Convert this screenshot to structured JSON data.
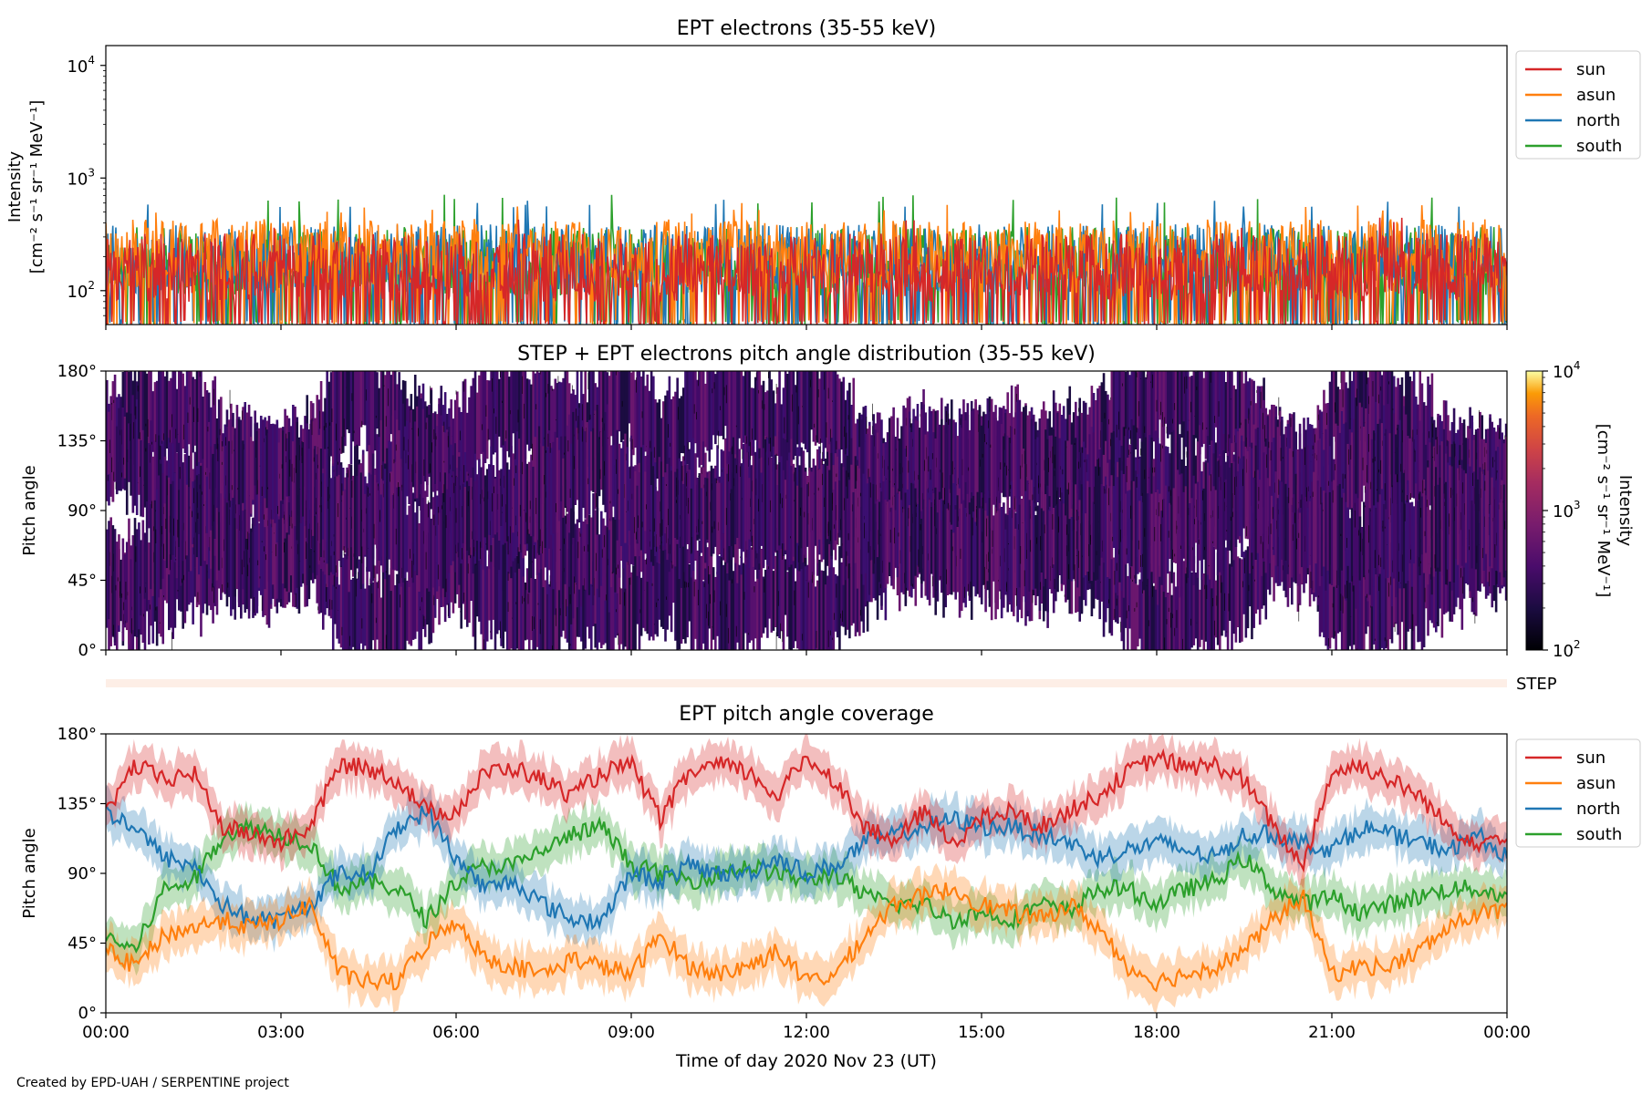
{
  "credit": "Created by EPD-UAH / SERPENTINE project",
  "xaxis": {
    "label": "Time of day 2020 Nov 23 (UT)",
    "tick_labels": [
      "00:00",
      "03:00",
      "06:00",
      "09:00",
      "12:00",
      "15:00",
      "18:00",
      "21:00",
      "00:00"
    ]
  },
  "colors": {
    "sun": "#d62728",
    "asun": "#ff7f0e",
    "north": "#1f77b4",
    "south": "#2ca02c",
    "step_bar": "#fdeee6"
  },
  "legend_labels": [
    "sun",
    "asun",
    "north",
    "south"
  ],
  "step_label": "STEP",
  "chart_data": [
    {
      "type": "line",
      "title": "EPT electrons (35-55 keV)",
      "ylabel_line1": "Intensity",
      "ylabel_line2": "[cm⁻² s⁻¹ sr⁻¹ MeV⁻¹]",
      "yscale": "log",
      "ylim": [
        50,
        15000
      ],
      "ytick_values": [
        100,
        1000,
        10000
      ],
      "ytick_exponents": [
        "2",
        "3",
        "4"
      ],
      "xlim_hours": [
        0,
        24
      ],
      "legend_position": "upper right, outside",
      "series_names": [
        "sun",
        "asun",
        "north",
        "south"
      ],
      "series_summary": {
        "sun": {
          "typical": 150,
          "min": 50,
          "max": 450
        },
        "asun": {
          "typical": 200,
          "min": 50,
          "max": 600
        },
        "north": {
          "typical": 180,
          "min": 50,
          "max": 650
        },
        "south": {
          "typical": 170,
          "min": 50,
          "max": 720
        }
      }
    },
    {
      "type": "heatmap",
      "title": "STEP + EPT electrons pitch angle distribution (35-55 keV)",
      "ylabel": "Pitch angle",
      "ylim": [
        0,
        180
      ],
      "ytick_labels": [
        "0°",
        "45°",
        "90°",
        "135°",
        "180°"
      ],
      "colorbar": {
        "label": "Intensity",
        "units": "[cm⁻² s⁻¹ sr⁻¹ MeV⁻¹]",
        "scale": "log",
        "range": [
          100,
          10000
        ],
        "tick_exponents": [
          "2",
          "3",
          "4"
        ],
        "colormap": "inferno"
      }
    },
    {
      "type": "line",
      "title": "EPT pitch angle coverage",
      "ylabel": "Pitch angle",
      "ylim": [
        0,
        180
      ],
      "ytick_labels": [
        "0°",
        "45°",
        "90°",
        "135°",
        "180°"
      ],
      "legend_position": "upper right, outside",
      "x_hours": [
        0,
        0.5,
        1,
        1.5,
        2,
        2.5,
        3,
        3.5,
        4,
        4.5,
        5,
        5.5,
        6,
        6.5,
        7,
        7.5,
        8,
        8.5,
        9,
        9.5,
        10,
        10.5,
        11,
        11.5,
        12,
        12.5,
        13,
        13.5,
        14,
        14.5,
        15,
        15.5,
        16,
        16.5,
        17,
        17.5,
        18,
        18.5,
        19,
        19.5,
        20,
        20.5,
        21,
        21.5,
        22,
        22.5,
        23,
        23.5,
        24
      ],
      "series": [
        {
          "name": "sun",
          "values": [
            130,
            160,
            150,
            155,
            120,
            115,
            110,
            120,
            160,
            158,
            150,
            130,
            130,
            155,
            158,
            150,
            140,
            155,
            160,
            125,
            155,
            160,
            155,
            140,
            165,
            150,
            120,
            110,
            130,
            110,
            125,
            130,
            120,
            130,
            140,
            155,
            165,
            158,
            160,
            150,
            120,
            95,
            155,
            160,
            150,
            140,
            120,
            110,
            115
          ]
        },
        {
          "name": "asun",
          "values": [
            40,
            30,
            50,
            55,
            60,
            55,
            60,
            70,
            25,
            20,
            20,
            45,
            60,
            35,
            30,
            25,
            35,
            30,
            25,
            50,
            30,
            25,
            30,
            40,
            20,
            25,
            50,
            70,
            75,
            80,
            70,
            65,
            60,
            70,
            55,
            30,
            20,
            25,
            30,
            40,
            60,
            75,
            25,
            30,
            30,
            40,
            55,
            65,
            65
          ]
        },
        {
          "name": "north",
          "values": [
            130,
            120,
            100,
            95,
            70,
            60,
            60,
            70,
            90,
            90,
            120,
            130,
            100,
            80,
            85,
            70,
            60,
            60,
            90,
            85,
            95,
            90,
            90,
            100,
            90,
            95,
            110,
            115,
            120,
            125,
            120,
            120,
            115,
            110,
            100,
            105,
            110,
            105,
            100,
            115,
            115,
            110,
            105,
            120,
            115,
            110,
            105,
            115,
            100
          ]
        },
        {
          "name": "south",
          "values": [
            50,
            40,
            80,
            85,
            115,
            120,
            115,
            110,
            80,
            85,
            80,
            60,
            85,
            95,
            95,
            105,
            115,
            120,
            95,
            90,
            85,
            90,
            95,
            90,
            85,
            90,
            75,
            70,
            70,
            60,
            65,
            60,
            70,
            65,
            80,
            80,
            70,
            80,
            85,
            100,
            80,
            70,
            75,
            65,
            70,
            75,
            80,
            80,
            75
          ]
        }
      ]
    }
  ]
}
